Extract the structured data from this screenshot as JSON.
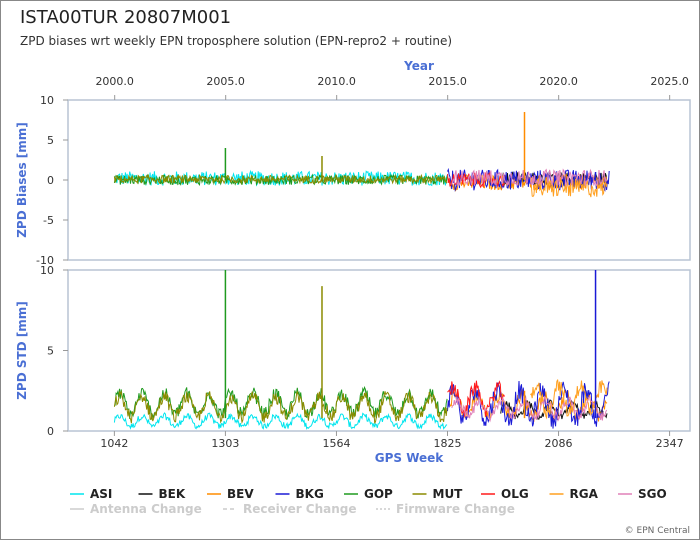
{
  "chart_data": {
    "type": "line",
    "title": "ISTA00TUR 20807M001",
    "subtitle": "ZPD biases wrt weekly EPN troposphere solution (EPN-repro2 + routine)",
    "top_axis": {
      "label": "Year",
      "ticks": [
        "2000.0",
        "2005.0",
        "2010.0",
        "2015.0",
        "2020.0",
        "2025.0"
      ]
    },
    "bottom_axis": {
      "label": "GPS Week",
      "ticks": [
        "1042",
        "1303",
        "1564",
        "1825",
        "2086",
        "2347"
      ],
      "range": [
        933,
        2395
      ]
    },
    "panels": [
      {
        "id": "bias",
        "ylabel": "ZPD Biases [mm]",
        "ylim": [
          -10,
          10
        ],
        "yticks": [
          "10",
          "5",
          "0",
          "-5",
          "-10"
        ]
      },
      {
        "id": "std",
        "ylabel": "ZPD STD [mm]",
        "ylim": [
          0,
          10
        ],
        "yticks": [
          "10",
          "5",
          "0"
        ]
      }
    ],
    "series": [
      {
        "name": "ASI",
        "color": "#00e5ee",
        "x_range": [
          1042,
          1825
        ],
        "bias_mean": 0.2,
        "bias_noise": 0.9,
        "std_mean": 0.6,
        "std_noise": 0.4
      },
      {
        "name": "BEK",
        "color": "#111111",
        "x_range": [
          1950,
          2200
        ],
        "bias_mean": 0.2,
        "bias_noise": 0.8,
        "std_mean": 1.3,
        "std_noise": 0.5
      },
      {
        "name": "BEV",
        "color": "#ff8c00",
        "x_range": [
          1830,
          2200
        ],
        "bias_mean": -0.3,
        "bias_noise": 1.0,
        "std_mean": 1.6,
        "std_noise": 0.8
      },
      {
        "name": "BKG",
        "color": "#1a1ad6",
        "x_range": [
          1825,
          2205
        ],
        "bias_mean": 0.0,
        "bias_noise": 1.3,
        "std_mean": 1.6,
        "std_noise": 1.2
      },
      {
        "name": "GOP",
        "color": "#1f9a1f",
        "x_range": [
          1042,
          1825
        ],
        "bias_mean": 0.0,
        "bias_noise": 0.6,
        "std_mean": 1.7,
        "std_noise": 0.8
      },
      {
        "name": "MUT",
        "color": "#8b8b00",
        "x_range": [
          1042,
          1825
        ],
        "bias_mean": 0.1,
        "bias_noise": 0.5,
        "std_mean": 1.5,
        "std_noise": 0.8
      },
      {
        "name": "OLG",
        "color": "#ff1a1a",
        "x_range": [
          1825,
          1960
        ],
        "bias_mean": 0.0,
        "bias_noise": 0.9,
        "std_mean": 2.0,
        "std_noise": 0.9
      },
      {
        "name": "RGA",
        "color": "#ffa020",
        "x_range": [
          2020,
          2200
        ],
        "bias_mean": -1.0,
        "bias_noise": 1.2,
        "std_mean": 2.0,
        "std_noise": 1.0
      },
      {
        "name": "SGO",
        "color": "#e080b8",
        "x_range": [
          1835,
          2200
        ],
        "bias_mean": 0.3,
        "bias_noise": 1.0,
        "std_mean": 1.4,
        "std_noise": 0.6
      }
    ],
    "annotations": [
      {
        "series": "GOP",
        "x": 1303,
        "bias": 4.0,
        "std": 10.0
      },
      {
        "series": "MUT",
        "x": 1530,
        "bias": 3.0,
        "std": 9.0
      },
      {
        "series": "BEV",
        "x": 2006,
        "bias": 8.5,
        "std": 2.5
      },
      {
        "series": "BKG",
        "x": 2173,
        "bias": 1.0,
        "std": 10.0
      }
    ],
    "legend_placement": "bottom",
    "change_legend": [
      {
        "label": "Antenna Change",
        "style": "solid"
      },
      {
        "label": "Receiver Change",
        "style": "dashed"
      },
      {
        "label": "Firmware Change",
        "style": "dotted"
      }
    ],
    "credit": "© EPN Central"
  }
}
